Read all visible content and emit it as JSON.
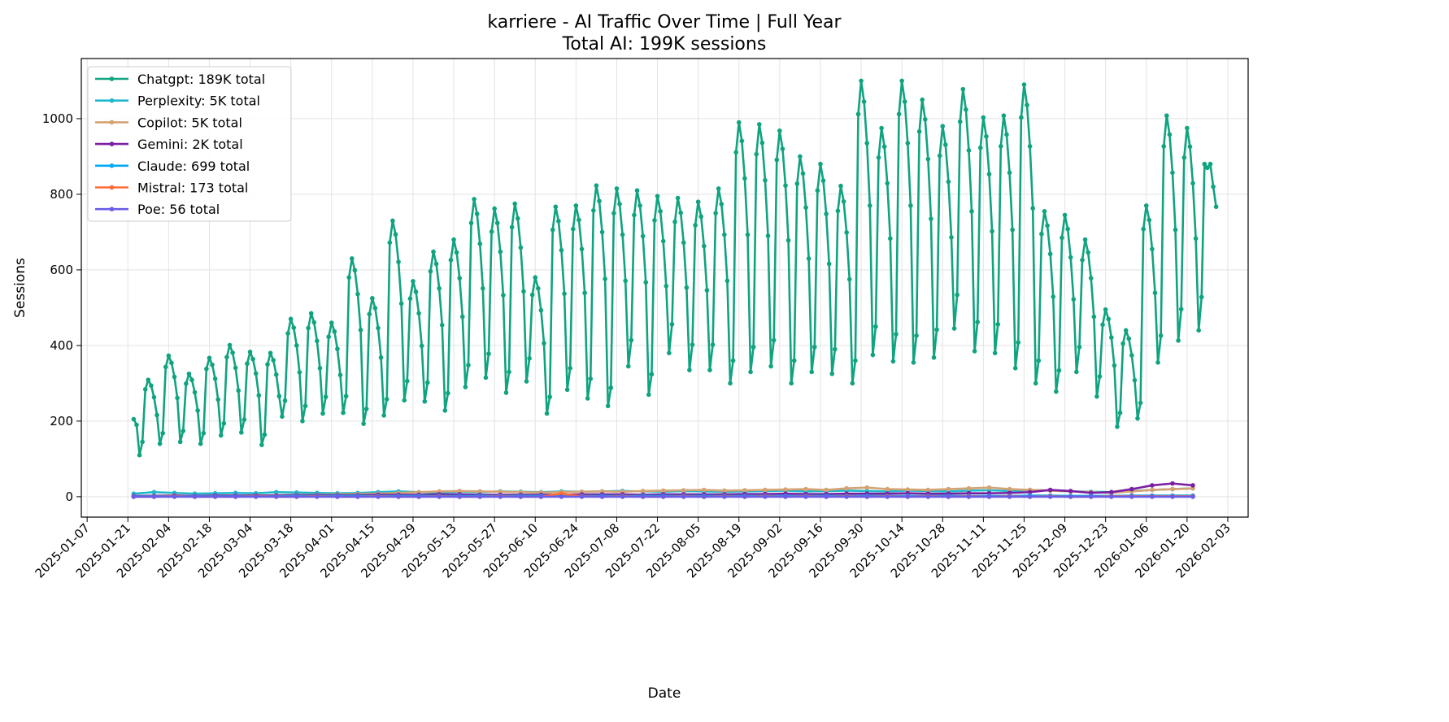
{
  "chart_data": {
    "type": "line",
    "title": "karriere - AI Traffic Over Time | Full Year",
    "subtitle": "Total AI: 199K sessions",
    "xlabel": "Date",
    "ylabel": "Sessions",
    "xlim": [
      "2025-01-05",
      "2026-02-10"
    ],
    "ylim": [
      -54,
      1159
    ],
    "grid": true,
    "legend_position": "top-left",
    "x_ticks": [
      "2025-01-07",
      "2025-01-21",
      "2025-02-04",
      "2025-02-18",
      "2025-03-04",
      "2025-03-18",
      "2025-04-01",
      "2025-04-15",
      "2025-04-29",
      "2025-05-13",
      "2025-05-27",
      "2025-06-10",
      "2025-06-24",
      "2025-07-08",
      "2025-07-22",
      "2025-08-05",
      "2025-08-19",
      "2025-09-02",
      "2025-09-16",
      "2025-09-30",
      "2025-10-14",
      "2025-10-28",
      "2025-11-11",
      "2025-11-25",
      "2025-12-09",
      "2025-12-23",
      "2026-01-06",
      "2026-01-20",
      "2026-02-03"
    ],
    "y_ticks": [
      "0",
      "200",
      "400",
      "600",
      "800",
      "1000"
    ],
    "series": [
      {
        "name": "Chatgpt",
        "label": "Chatgpt: 189K total",
        "color": "#10a37f",
        "start": "2025-01-23",
        "step_days": 1,
        "values": [
          205,
          190,
          110,
          145,
          284,
          309,
          294,
          263,
          216,
          140,
          168,
          343,
          373,
          354,
          317,
          261,
          145,
          174,
          299,
          325,
          309,
          276,
          228,
          140,
          168,
          338,
          367,
          349,
          312,
          257,
          162,
          194,
          369,
          401,
          381,
          341,
          281,
          170,
          204,
          352,
          383,
          364,
          326,
          268,
          137,
          164,
          350,
          380,
          361,
          323,
          266,
          212,
          254,
          432,
          470,
          447,
          400,
          329,
          200,
          240,
          446,
          485,
          461,
          412,
          340,
          220,
          264,
          423,
          460,
          437,
          391,
          322,
          222,
          266,
          580,
          630,
          599,
          536,
          441,
          193,
          232,
          483,
          525,
          499,
          446,
          368,
          215,
          258,
          672,
          730,
          694,
          621,
          511,
          255,
          306,
          524,
          570,
          542,
          485,
          399,
          252,
          302,
          596,
          648,
          616,
          551,
          454,
          228,
          274,
          626,
          680,
          646,
          578,
          476,
          290,
          348,
          724,
          787,
          748,
          669,
          551,
          315,
          378,
          701,
          762,
          724,
          648,
          533,
          275,
          330,
          713,
          775,
          736,
          659,
          543,
          305,
          366,
          534,
          580,
          551,
          493,
          406,
          220,
          264,
          706,
          767,
          729,
          652,
          537,
          283,
          340,
          708,
          770,
          732,
          655,
          539,
          260,
          312,
          757,
          823,
          782,
          700,
          576,
          240,
          288,
          750,
          815,
          774,
          693,
          571,
          345,
          414,
          745,
          810,
          770,
          689,
          567,
          270,
          324,
          731,
          795,
          755,
          676,
          557,
          380,
          456,
          727,
          790,
          751,
          672,
          553,
          335,
          402,
          718,
          780,
          741,
          663,
          546,
          335,
          402,
          750,
          815,
          774,
          693,
          571,
          300,
          360,
          911,
          990,
          941,
          842,
          693,
          330,
          396,
          906,
          985,
          936,
          837,
          690,
          345,
          414,
          891,
          968,
          920,
          823,
          678,
          300,
          360,
          828,
          900,
          855,
          765,
          630,
          330,
          396,
          810,
          880,
          836,
          748,
          616,
          325,
          390,
          756,
          822,
          781,
          699,
          575,
          300,
          360,
          1012,
          1100,
          1045,
          935,
          770,
          375,
          450,
          897,
          975,
          926,
          829,
          683,
          358,
          430,
          1012,
          1100,
          1045,
          935,
          770,
          355,
          426,
          966,
          1050,
          998,
          893,
          735,
          368,
          442,
          902,
          980,
          931,
          833,
          686,
          445,
          534,
          992,
          1078,
          1024,
          916,
          755,
          385,
          462,
          923,
          1003,
          953,
          853,
          702,
          380,
          456,
          927,
          1008,
          958,
          857,
          706,
          340,
          408,
          1003,
          1090,
          1036,
          927,
          763,
          300,
          360,
          695,
          755,
          717,
          642,
          529,
          278,
          334,
          685,
          745,
          708,
          633,
          522,
          330,
          396,
          626,
          680,
          646,
          578,
          476,
          265,
          318,
          455,
          495,
          470,
          421,
          347,
          185,
          222,
          405,
          440,
          418,
          374,
          308,
          207,
          248,
          708,
          770,
          732,
          655,
          539,
          355,
          426,
          927,
          1008,
          958,
          857,
          706,
          413,
          496,
          897,
          975,
          926,
          829,
          683,
          440,
          528,
          880,
          870,
          880,
          820,
          767
        ]
      },
      {
        "name": "Perplexity",
        "label": "Perplexity: 5K total",
        "color": "#20b8cd",
        "start": "2025-01-23",
        "step_days": 7,
        "values": [
          8,
          12,
          10,
          8,
          9,
          10,
          9,
          12,
          11,
          10,
          9,
          10,
          12,
          14,
          12,
          11,
          13,
          12,
          14,
          13,
          12,
          14,
          13,
          14,
          15,
          14,
          13,
          15,
          14,
          13,
          14,
          15,
          16,
          14,
          15,
          16,
          15,
          14,
          16,
          15,
          14,
          16,
          17,
          15,
          18,
          16,
          14,
          13,
          12,
          15,
          18,
          20,
          22
        ]
      },
      {
        "name": "Copilot",
        "label": "Copilot: 5K total",
        "color": "#d4a373",
        "start": "2025-01-23",
        "step_days": 7,
        "values": [
          2,
          3,
          3,
          2,
          3,
          3,
          3,
          4,
          5,
          5,
          6,
          7,
          8,
          10,
          12,
          14,
          15,
          14,
          13,
          12,
          11,
          12,
          13,
          14,
          13,
          15,
          16,
          17,
          18,
          16,
          17,
          18,
          19,
          20,
          18,
          22,
          24,
          20,
          19,
          18,
          20,
          22,
          24,
          20,
          18,
          16,
          14,
          12,
          10,
          14,
          18,
          20,
          22
        ]
      },
      {
        "name": "Gemini",
        "label": "Gemini: 2K total",
        "color": "#7b1fa2",
        "start": "2025-01-23",
        "step_days": 7,
        "values": [
          2,
          2,
          3,
          2,
          3,
          3,
          3,
          3,
          4,
          4,
          4,
          4,
          5,
          5,
          5,
          6,
          6,
          5,
          5,
          5,
          5,
          5,
          6,
          6,
          6,
          5,
          6,
          6,
          6,
          6,
          7,
          7,
          8,
          7,
          7,
          8,
          8,
          8,
          9,
          8,
          8,
          9,
          9,
          10,
          12,
          18,
          15,
          10,
          12,
          20,
          30,
          35,
          30
        ]
      },
      {
        "name": "Claude",
        "label": "Claude: 699 total",
        "color": "#03a9f4",
        "start": "2025-01-23",
        "step_days": 7,
        "values": [
          1,
          1,
          1,
          1,
          1,
          1,
          1,
          1,
          2,
          2,
          2,
          2,
          2,
          2,
          2,
          2,
          2,
          2,
          2,
          2,
          2,
          2,
          2,
          2,
          2,
          2,
          2,
          2,
          2,
          2,
          2,
          2,
          2,
          2,
          2,
          2,
          2,
          2,
          2,
          2,
          2,
          2,
          2,
          2,
          3,
          3,
          2,
          2,
          2,
          3,
          3,
          3,
          3
        ]
      },
      {
        "name": "Mistral",
        "label": "Mistral: 173 total",
        "color": "#ff6b35",
        "start": "2025-01-23",
        "step_days": 7,
        "values": [
          0,
          0,
          1,
          0,
          0,
          0,
          1,
          0,
          0,
          1,
          0,
          0,
          1,
          0,
          0,
          1,
          0,
          0,
          1,
          0,
          0,
          8,
          1,
          0,
          1,
          0,
          0,
          1,
          0,
          1,
          0,
          1,
          0,
          1,
          0,
          1,
          0,
          1,
          0,
          1,
          0,
          1,
          0,
          1,
          0,
          1,
          0,
          0,
          1,
          1,
          1,
          1,
          1
        ]
      },
      {
        "name": "Poe",
        "label": "Poe: 56 total",
        "color": "#6b5ce7",
        "start": "2025-01-23",
        "step_days": 7,
        "values": [
          0,
          0,
          0,
          0,
          0,
          0,
          0,
          0,
          0,
          0,
          0,
          0,
          0,
          0,
          0,
          0,
          0,
          0,
          0,
          0,
          0,
          0,
          0,
          0,
          0,
          0,
          0,
          0,
          0,
          0,
          0,
          0,
          0,
          0,
          0,
          0,
          0,
          0,
          0,
          0,
          0,
          0,
          0,
          0,
          0,
          0,
          0,
          0,
          0,
          0,
          0,
          0,
          0
        ]
      }
    ]
  }
}
